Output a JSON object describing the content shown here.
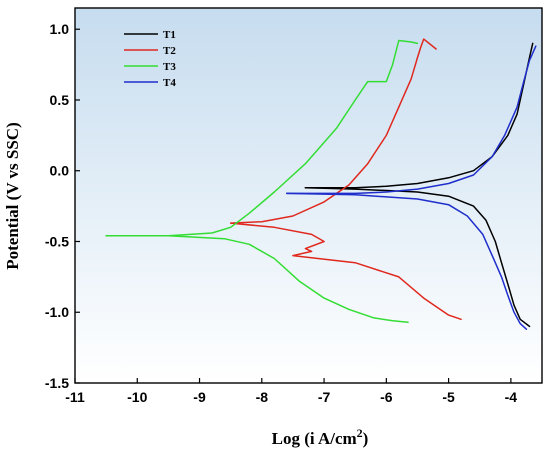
{
  "chart_data": {
    "type": "line",
    "title": "",
    "xlabel": "Log (i A/cm",
    "xlabel_sup": "2",
    "xlabel_suffix": ")",
    "ylabel": "Potential (V vs SSC)",
    "xlim": [
      -11,
      -3.5
    ],
    "ylim": [
      -1.5,
      1.15
    ],
    "xticks": [
      -11,
      -10,
      -9,
      -8,
      -7,
      -6,
      -5,
      -4
    ],
    "yticks": [
      -1.5,
      -1.0,
      -0.5,
      0.0,
      0.5,
      1.0
    ],
    "ytick_labels": [
      "-1.5",
      "-1.0",
      "-0.5",
      "0.0",
      "0.5",
      "1.0"
    ],
    "background": "light blue gradient",
    "legend_position": "top-left",
    "series": [
      {
        "name": "T1",
        "color": "#000000",
        "x": [
          -7.3,
          -6.5,
          -6.0,
          -5.5,
          -5.0,
          -4.6,
          -4.3,
          -4.05,
          -3.9,
          -3.8,
          -3.7,
          -3.65
        ],
        "y": [
          -0.12,
          -0.12,
          -0.11,
          -0.09,
          -0.05,
          0.0,
          0.1,
          0.25,
          0.4,
          0.6,
          0.8,
          0.9
        ]
      },
      {
        "name": "T1",
        "color": "#000000",
        "x": [
          -7.3,
          -6.5,
          -5.5,
          -5.0,
          -4.6,
          -4.4,
          -4.25,
          -4.15,
          -4.05,
          -3.95,
          -3.85,
          -3.7
        ],
        "y": [
          -0.12,
          -0.13,
          -0.15,
          -0.18,
          -0.25,
          -0.35,
          -0.5,
          -0.65,
          -0.8,
          -0.95,
          -1.05,
          -1.1
        ]
      },
      {
        "name": "T2",
        "color": "#e0281e",
        "x": [
          -8.5,
          -8.0,
          -7.5,
          -7.0,
          -6.6,
          -6.3,
          -6.0,
          -5.8,
          -5.6,
          -5.5,
          -5.45,
          -5.4,
          -5.2
        ],
        "y": [
          -0.37,
          -0.36,
          -0.32,
          -0.22,
          -0.1,
          0.05,
          0.25,
          0.45,
          0.65,
          0.8,
          0.87,
          0.93,
          0.86
        ]
      },
      {
        "name": "T2",
        "color": "#e0281e",
        "x": [
          -8.5,
          -7.8,
          -7.2,
          -7.0,
          -7.3,
          -7.2,
          -7.5,
          -6.5,
          -5.8,
          -5.4,
          -5.0,
          -4.8
        ],
        "y": [
          -0.37,
          -0.4,
          -0.45,
          -0.5,
          -0.55,
          -0.57,
          -0.6,
          -0.65,
          -0.75,
          -0.9,
          -1.02,
          -1.05
        ]
      },
      {
        "name": "T3",
        "color": "#33dd33",
        "x": [
          -10.5,
          -9.5,
          -8.8,
          -8.5,
          -8.2,
          -7.8,
          -7.3,
          -6.8,
          -6.5,
          -6.3,
          -6.0,
          -5.9,
          -5.8,
          -5.6,
          -5.5
        ],
        "y": [
          -0.46,
          -0.46,
          -0.44,
          -0.4,
          -0.3,
          -0.15,
          0.05,
          0.3,
          0.5,
          0.63,
          0.63,
          0.75,
          0.92,
          0.91,
          0.9
        ]
      },
      {
        "name": "T3",
        "color": "#33dd33",
        "x": [
          -10.5,
          -9.5,
          -8.6,
          -8.2,
          -7.8,
          -7.4,
          -7.0,
          -6.6,
          -6.2,
          -5.9,
          -5.65
        ],
        "y": [
          -0.46,
          -0.46,
          -0.48,
          -0.52,
          -0.62,
          -0.78,
          -0.9,
          -0.98,
          -1.04,
          -1.06,
          -1.07
        ]
      },
      {
        "name": "T4",
        "color": "#1f2ecc",
        "x": [
          -7.6,
          -6.5,
          -6.0,
          -5.5,
          -5.0,
          -4.6,
          -4.3,
          -4.1,
          -3.9,
          -3.8,
          -3.7,
          -3.6
        ],
        "y": [
          -0.16,
          -0.16,
          -0.15,
          -0.13,
          -0.09,
          -0.03,
          0.1,
          0.25,
          0.45,
          0.62,
          0.78,
          0.88
        ]
      },
      {
        "name": "T4",
        "color": "#1f2ecc",
        "x": [
          -7.6,
          -6.5,
          -5.5,
          -5.0,
          -4.7,
          -4.45,
          -4.3,
          -4.15,
          -4.05,
          -3.95,
          -3.85,
          -3.75
        ],
        "y": [
          -0.16,
          -0.17,
          -0.2,
          -0.24,
          -0.32,
          -0.45,
          -0.6,
          -0.75,
          -0.88,
          -1.0,
          -1.08,
          -1.12
        ]
      }
    ],
    "legend": [
      {
        "label": "T1",
        "color": "#000000"
      },
      {
        "label": "T2",
        "color": "#e0281e"
      },
      {
        "label": "T3",
        "color": "#33dd33"
      },
      {
        "label": "T4",
        "color": "#1f2ecc"
      }
    ]
  }
}
